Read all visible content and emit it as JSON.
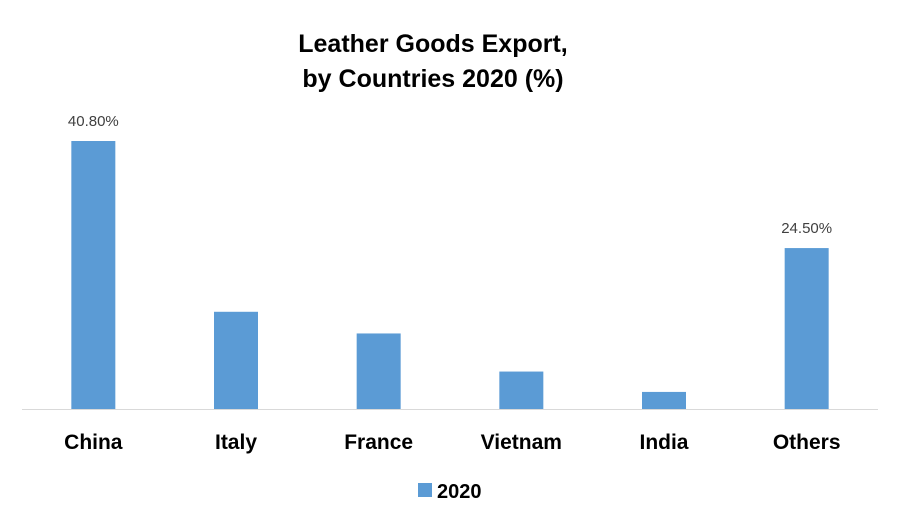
{
  "chart_data": {
    "type": "bar",
    "title_lines": [
      "Leather Goods Export,",
      "by Countries 2020 (%)"
    ],
    "categories": [
      "China",
      "Italy",
      "France",
      "Vietnam",
      "India",
      "Others"
    ],
    "series": [
      {
        "name": "2020",
        "color": "#5b9bd5",
        "values": [
          40.8,
          14.8,
          11.5,
          5.7,
          2.6,
          24.5
        ],
        "data_labels": [
          "40.80%",
          "",
          "",
          "",
          "",
          "24.50%"
        ]
      }
    ],
    "xlabel": "",
    "ylabel": "",
    "ylim": [
      0,
      40.8
    ],
    "grid": false,
    "legend_position": "bottom"
  }
}
